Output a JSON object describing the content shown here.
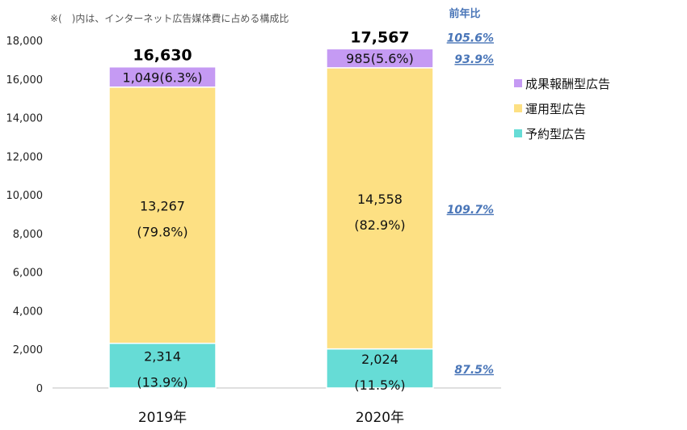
{
  "note": "※(　)内は、インターネット広告媒体費に占める構成比",
  "yoy_header": "前年比",
  "chart_data": {
    "type": "bar",
    "stacked": true,
    "categories": [
      "2019年",
      "2020年"
    ],
    "ylim": [
      0,
      18000
    ],
    "yticks": [
      "0",
      "2,000",
      "4,000",
      "6,000",
      "8,000",
      "10,000",
      "12,000",
      "14,000",
      "16,000",
      "18,000"
    ],
    "grid": false,
    "legend_position": "right",
    "series": [
      {
        "name": "予約型広告",
        "color": "#66dcd6",
        "values": [
          2314,
          2024
        ],
        "value_labels": [
          "2,314",
          "2,024"
        ],
        "share_labels": [
          "(13.9%)",
          "(11.5%)"
        ]
      },
      {
        "name": "運用型広告",
        "color": "#fde083",
        "values": [
          13267,
          14558
        ],
        "value_labels": [
          "13,267",
          "14,558"
        ],
        "share_labels": [
          "(79.8%)",
          "(82.9%)"
        ]
      },
      {
        "name": "成果報酬型広告",
        "color": "#c59af3",
        "values": [
          1049,
          985
        ],
        "value_labels": [
          "1,049(6.3%)",
          "985(5.6%)"
        ],
        "share_labels": [
          "",
          ""
        ]
      }
    ],
    "totals": [
      16630,
      17567
    ],
    "total_labels": [
      "16,630",
      "17,567"
    ],
    "yoy": {
      "total": "105.6%",
      "series": [
        "87.5%",
        "109.7%",
        "93.9%"
      ]
    }
  }
}
